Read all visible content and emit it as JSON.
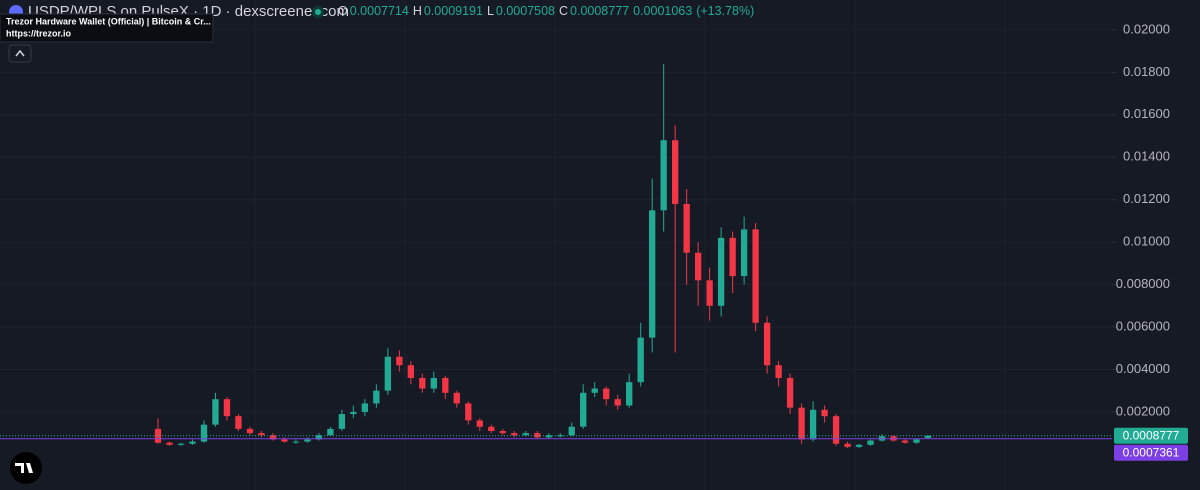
{
  "chart_data": {
    "type": "candlestick",
    "title": "USDP/WPLS on PulseX · 1D · dexscreener.com",
    "ohlc_legend": [
      {
        "label": "O",
        "value": 0.0007714
      },
      {
        "label": "H",
        "value": 0.0009191
      },
      {
        "label": "L",
        "value": 0.0007508
      },
      {
        "label": "C",
        "value": 0.0008777
      }
    ],
    "change": 0.0001063,
    "change_percent_label": "(+13.78%)",
    "tooltip": {
      "title": "Trezor Hardware Wallet (Official) | Bitcoin & Cr...",
      "url": "https://trezor.io"
    },
    "up_color": "#22ab94",
    "down_color": "#f23645",
    "open": [
      0.0012,
      0.00055,
      0.00045,
      0.0005,
      0.0006,
      0.0014,
      0.0026,
      0.0018,
      0.0012,
      0.001,
      0.0009,
      0.0007,
      0.0006,
      0.0006,
      0.0007,
      0.0009,
      0.0012,
      0.0019,
      0.002,
      0.0024,
      0.003,
      0.0046,
      0.0042,
      0.0036,
      0.0031,
      0.0036,
      0.0029,
      0.0024,
      0.0016,
      0.0013,
      0.0011,
      0.001,
      0.0009,
      0.001,
      0.0008,
      0.0009,
      0.0009,
      0.0013,
      0.0029,
      0.0031,
      0.0026,
      0.0023,
      0.0034,
      0.0055,
      0.0115,
      0.0148,
      0.0118,
      0.0095,
      0.0082,
      0.007,
      0.0102,
      0.0084,
      0.0106,
      0.0062,
      0.0042,
      0.0036,
      0.0022,
      0.0007,
      0.0021,
      0.0018,
      0.0005,
      0.00035,
      0.00045,
      0.00065,
      0.00085,
      0.00065,
      0.00055,
      0.0007714
    ],
    "high": [
      0.0017,
      0.0006,
      0.00055,
      0.0007,
      0.0016,
      0.0029,
      0.0027,
      0.0019,
      0.0013,
      0.0011,
      0.001,
      0.0008,
      0.0007,
      0.0008,
      0.001,
      0.0013,
      0.0021,
      0.0023,
      0.0026,
      0.0033,
      0.005,
      0.0049,
      0.0044,
      0.0038,
      0.0039,
      0.0037,
      0.003,
      0.0025,
      0.0017,
      0.0014,
      0.0012,
      0.0011,
      0.0011,
      0.0011,
      0.001,
      0.001,
      0.0015,
      0.0033,
      0.0034,
      0.0032,
      0.0028,
      0.0038,
      0.0062,
      0.013,
      0.0184,
      0.0155,
      0.0125,
      0.01,
      0.0088,
      0.0107,
      0.0105,
      0.0112,
      0.0109,
      0.0065,
      0.0044,
      0.0038,
      0.0024,
      0.0025,
      0.0023,
      0.0019,
      0.0006,
      0.0005,
      0.0007,
      0.00095,
      0.0009,
      0.0007,
      0.00075,
      0.0009191
    ],
    "low": [
      0.0005,
      0.0004,
      0.0004,
      0.00045,
      0.00055,
      0.0013,
      0.0016,
      0.0011,
      0.0009,
      0.0008,
      0.00065,
      0.00055,
      0.0005,
      0.00055,
      0.00065,
      0.00085,
      0.0011,
      0.0017,
      0.0018,
      0.0022,
      0.0028,
      0.0039,
      0.0033,
      0.0029,
      0.0029,
      0.0026,
      0.0022,
      0.0014,
      0.0011,
      0.001,
      0.0009,
      0.0008,
      0.00085,
      0.00075,
      0.00075,
      0.0008,
      0.00085,
      0.0012,
      0.0027,
      0.0023,
      0.0021,
      0.0022,
      0.0032,
      0.0048,
      0.0105,
      0.0048,
      0.008,
      0.007,
      0.0063,
      0.0065,
      0.0076,
      0.008,
      0.0058,
      0.0038,
      0.0032,
      0.0019,
      0.0005,
      0.0006,
      0.0015,
      0.0004,
      0.0003,
      0.0003,
      0.0004,
      0.0006,
      0.0006,
      0.0005,
      0.0005,
      0.0007508
    ],
    "close": [
      0.00055,
      0.00045,
      0.0005,
      0.0006,
      0.0014,
      0.0026,
      0.0018,
      0.0012,
      0.001,
      0.0009,
      0.0007,
      0.0006,
      0.0006,
      0.0007,
      0.0009,
      0.0012,
      0.0019,
      0.002,
      0.0024,
      0.003,
      0.0046,
      0.0042,
      0.0036,
      0.0031,
      0.0036,
      0.0029,
      0.0024,
      0.0016,
      0.0013,
      0.0011,
      0.001,
      0.0009,
      0.001,
      0.0008,
      0.0009,
      0.0009,
      0.0013,
      0.0029,
      0.0031,
      0.0026,
      0.0023,
      0.0034,
      0.0055,
      0.0115,
      0.0148,
      0.0118,
      0.0095,
      0.0082,
      0.007,
      0.0102,
      0.0084,
      0.0106,
      0.0062,
      0.0042,
      0.0036,
      0.0022,
      0.0007,
      0.0021,
      0.0018,
      0.0005,
      0.00035,
      0.00045,
      0.00065,
      0.00085,
      0.00065,
      0.00055,
      0.0007,
      0.0008777
    ],
    "last_price": 0.0008777,
    "last_price_color": "#22ab94",
    "line_price": 0.0007361,
    "line_price_color": "#7b3fe4",
    "ylim": [
      -0.00168,
      0.02141
    ],
    "yticks": [
      {
        "value": 0.02,
        "label": "0.02000"
      },
      {
        "value": 0.018,
        "label": "0.01800"
      },
      {
        "value": 0.016,
        "label": "0.01600"
      },
      {
        "value": 0.014,
        "label": "0.01400"
      },
      {
        "value": 0.012,
        "label": "0.01200"
      },
      {
        "value": 0.01,
        "label": "0.01000"
      },
      {
        "value": 0.008,
        "label": "0.008000"
      },
      {
        "value": 0.006,
        "label": "0.006000"
      },
      {
        "value": 0.004,
        "label": "0.004000"
      },
      {
        "value": 0.002,
        "label": "0.002000"
      }
    ],
    "grid": true
  }
}
